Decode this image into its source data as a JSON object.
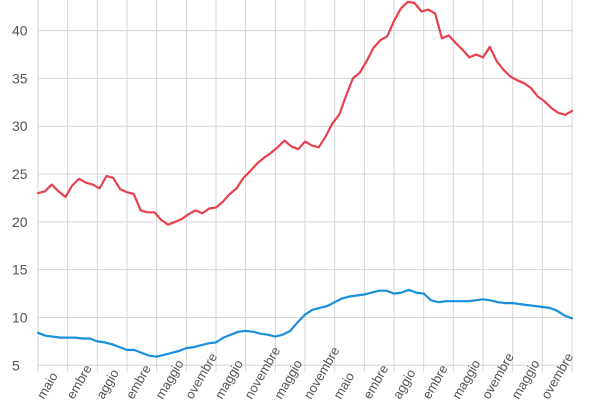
{
  "chart_data": {
    "type": "line",
    "title": "",
    "xlabel": "",
    "ylabel": "",
    "ylim": [
      4.3,
      43.2
    ],
    "y_ticks": [
      5,
      10,
      15,
      20,
      25,
      30,
      35,
      40
    ],
    "grid": true,
    "legend": "none",
    "x_tick_labels": [
      "maio",
      "embre",
      "aggio",
      "embre",
      "maggio",
      "ovembre",
      "maggio",
      "novembre",
      "maggio",
      "novembre",
      "maio",
      "embre",
      "aggio",
      "embre",
      "maggio",
      "ovembre",
      "maggio",
      "ovembre"
    ],
    "series": [
      {
        "color": "#e8414e",
        "values": [
          23.0,
          23.2,
          23.9,
          23.2,
          22.6,
          23.8,
          24.5,
          24.1,
          23.9,
          23.5,
          24.8,
          24.6,
          23.4,
          23.1,
          22.9,
          21.2,
          21.0,
          21.0,
          20.2,
          19.7,
          20.0,
          20.3,
          20.8,
          21.2,
          20.9,
          21.4,
          21.5,
          22.1,
          22.9,
          23.5,
          24.6,
          25.3,
          26.1,
          26.7,
          27.2,
          27.8,
          28.5,
          27.9,
          27.6,
          28.4,
          28.0,
          27.8,
          28.9,
          30.3,
          31.2,
          33.2,
          35.0,
          35.6,
          36.8,
          38.2,
          39.0,
          39.4,
          41.0,
          42.3,
          43.0,
          42.9,
          42.0,
          42.2,
          41.8,
          39.2,
          39.5,
          38.7,
          38.0,
          37.2,
          37.5,
          37.2,
          38.3,
          36.8,
          35.9,
          35.2,
          34.8,
          34.5,
          34.0,
          33.1,
          32.6,
          31.9,
          31.4,
          31.2,
          31.6
        ]
      },
      {
        "color": "#1a8fdc",
        "values": [
          8.4,
          8.1,
          8.0,
          7.9,
          7.9,
          7.9,
          7.8,
          7.8,
          7.5,
          7.4,
          7.2,
          6.9,
          6.6,
          6.6,
          6.3,
          6.0,
          5.9,
          6.1,
          6.3,
          6.5,
          6.8,
          6.9,
          7.1,
          7.3,
          7.4,
          7.9,
          8.2,
          8.5,
          8.6,
          8.5,
          8.3,
          8.2,
          8.0,
          8.2,
          8.6,
          9.5,
          10.3,
          10.8,
          11.0,
          11.2,
          11.6,
          12.0,
          12.2,
          12.3,
          12.4,
          12.6,
          12.8,
          12.8,
          12.5,
          12.6,
          12.9,
          12.6,
          12.5,
          11.8,
          11.6,
          11.7,
          11.7,
          11.7,
          11.7,
          11.8,
          11.9,
          11.8,
          11.6,
          11.5,
          11.5,
          11.4,
          11.3,
          11.2,
          11.1,
          11.0,
          10.7,
          10.2,
          9.9
        ]
      }
    ]
  }
}
